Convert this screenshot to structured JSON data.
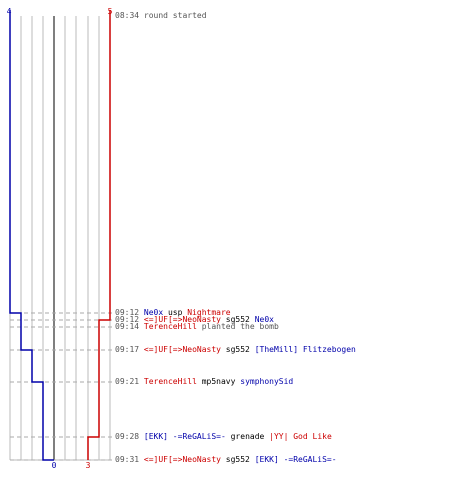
{
  "colors": {
    "team_ct": "#0000aa",
    "team_t": "#cc0000",
    "grid": "#bbbbbb",
    "axis": "#555555",
    "dash": "#aaaaaa",
    "time": "#555555"
  },
  "timeline": {
    "ct_start_count": "4",
    "t_start_count": "5",
    "ct_end_count": "0",
    "t_end_count": "3"
  },
  "chart_data": {
    "type": "line",
    "x": [
      "08:34",
      "09:12",
      "09:12",
      "09:14",
      "09:17",
      "09:21",
      "09:28",
      "09:31"
    ],
    "series": [
      {
        "values": [
          4,
          3,
          3,
          3,
          2,
          1,
          1,
          0
        ]
      },
      {
        "values": [
          5,
          5,
          4,
          4,
          4,
          4,
          3,
          3
        ]
      }
    ],
    "ylim": [
      0,
      5
    ]
  },
  "events": [
    {
      "time": "08:34",
      "parts": [
        {
          "text": "round started",
          "kind": "msg"
        }
      ]
    },
    {
      "time": "09:12",
      "parts": [
        {
          "text": "Ne0x",
          "kind": "ct"
        },
        {
          "text": " usp ",
          "kind": "weapon"
        },
        {
          "text": "Nightmare",
          "kind": "t"
        }
      ]
    },
    {
      "time": "09:12",
      "parts": [
        {
          "text": "<=]UF[=>NeoNasty",
          "kind": "t"
        },
        {
          "text": " sg552 ",
          "kind": "weapon"
        },
        {
          "text": "Ne0x",
          "kind": "ct"
        }
      ]
    },
    {
      "time": "09:14",
      "parts": [
        {
          "text": "TerenceHill",
          "kind": "t"
        },
        {
          "text": " planted the bomb",
          "kind": "msg"
        }
      ]
    },
    {
      "time": "09:17",
      "parts": [
        {
          "text": "<=]UF[=>NeoNasty",
          "kind": "t"
        },
        {
          "text": " sg552 ",
          "kind": "weapon"
        },
        {
          "text": "[TheMill] Flitzebogen",
          "kind": "ct"
        }
      ]
    },
    {
      "time": "09:21",
      "parts": [
        {
          "text": "TerenceHill",
          "kind": "t"
        },
        {
          "text": " mp5navy ",
          "kind": "weapon"
        },
        {
          "text": "symphonySid",
          "kind": "ct"
        }
      ]
    },
    {
      "time": "09:28",
      "parts": [
        {
          "text": "[EKK] -=ReGALiS=-",
          "kind": "ct"
        },
        {
          "text": " grenade ",
          "kind": "weapon"
        },
        {
          "text": "|YY| God Like",
          "kind": "t"
        }
      ]
    },
    {
      "time": "09:31",
      "parts": [
        {
          "text": "<=]UF[=>NeoNasty",
          "kind": "t"
        },
        {
          "text": " sg552 ",
          "kind": "weapon"
        },
        {
          "text": "[EKK] -=ReGALiS=-",
          "kind": "ct"
        }
      ]
    }
  ]
}
